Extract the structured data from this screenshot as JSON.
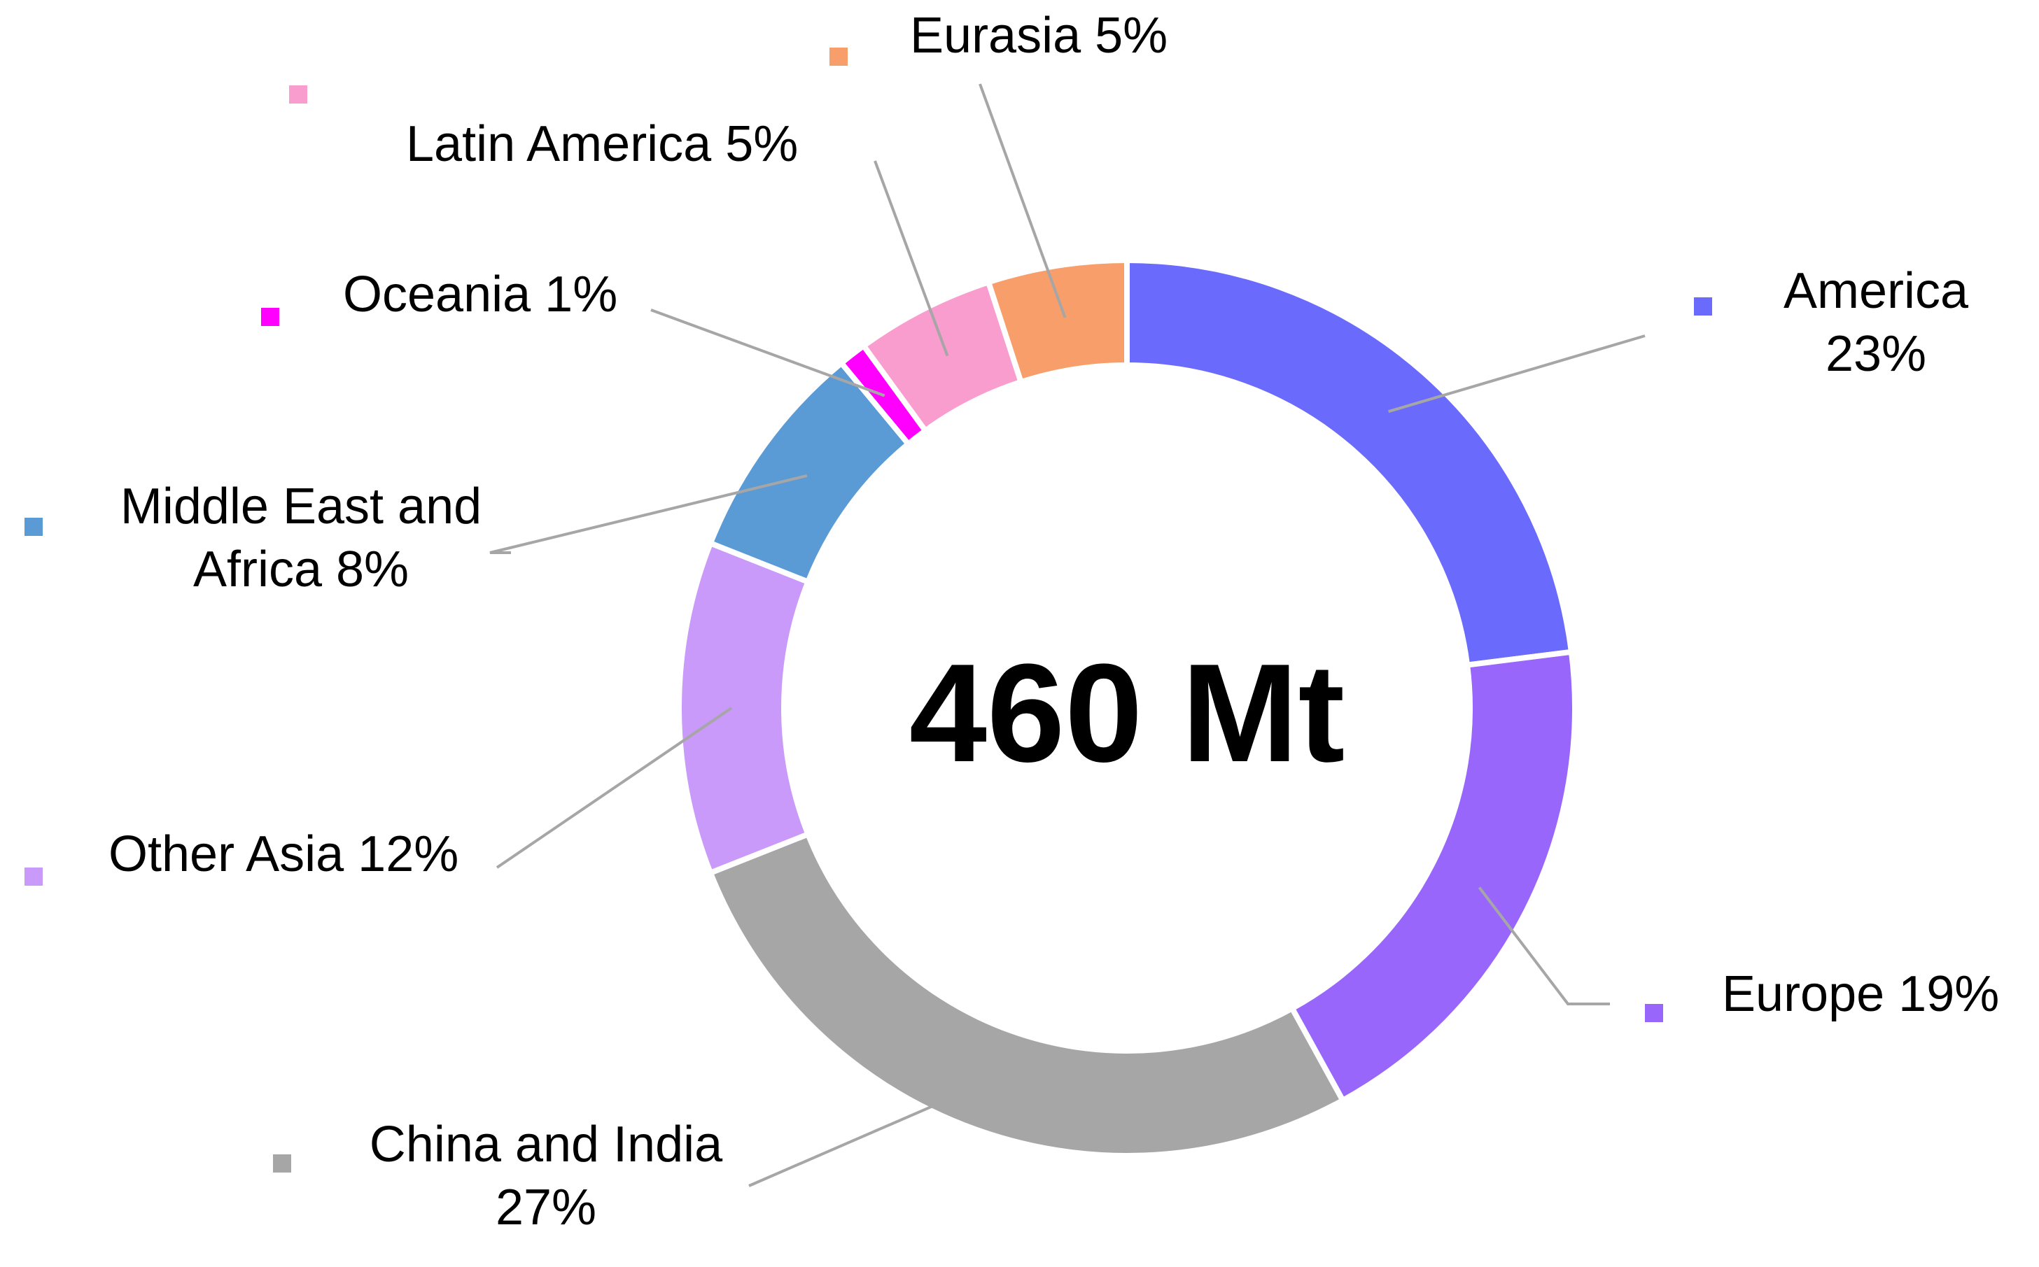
{
  "chart_data": {
    "type": "pie",
    "subtype": "donut",
    "center_label": "460 Mt",
    "categories": [
      "America",
      "Europe",
      "China and India",
      "Other Asia",
      "Middle East and Africa",
      "Oceania",
      "Latin America",
      "Eurasia"
    ],
    "values": [
      23,
      19,
      27,
      12,
      8,
      1,
      5,
      5
    ],
    "value_unit": "%",
    "labels": [
      [
        "America",
        "23%"
      ],
      [
        "Europe 19%"
      ],
      [
        "China and India",
        "27%"
      ],
      [
        "Other Asia 12%"
      ],
      [
        "Middle East and",
        "Africa 8%"
      ],
      [
        "Oceania 1%"
      ],
      [
        "Latin America 5%"
      ],
      [
        "Eurasia 5%"
      ]
    ],
    "colors": [
      "#6a6afc",
      "#9966fc",
      "#a6a6a6",
      "#c99af9",
      "#5b9bd5",
      "#ff00ff",
      "#f99cce",
      "#f89e6a"
    ],
    "legend": "none"
  }
}
